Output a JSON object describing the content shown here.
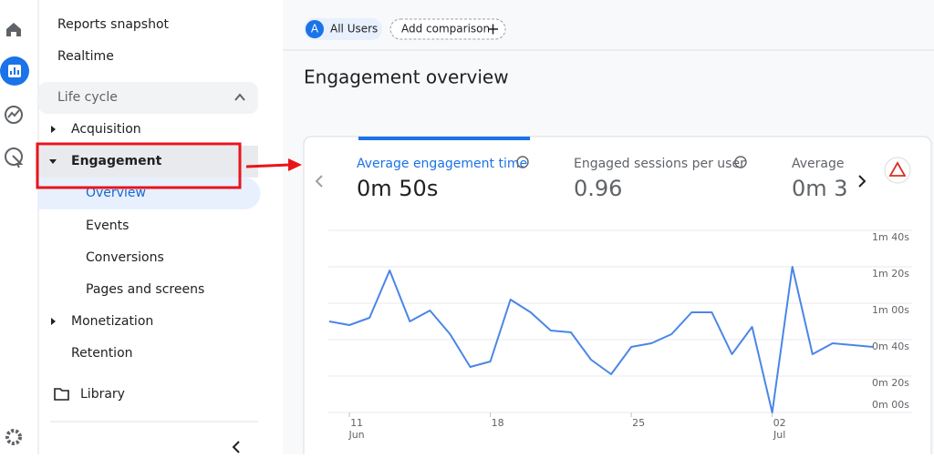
{
  "sidebar": {
    "reports_snapshot": "Reports snapshot",
    "realtime": "Realtime",
    "section": "Life cycle",
    "items": [
      "Acquisition",
      "Engagement",
      "Overview",
      "Events",
      "Conversions",
      "Pages and screens",
      "Monetization",
      "Retention"
    ],
    "library": "Library"
  },
  "header": {
    "segment_badge": "A",
    "segment": "All Users",
    "add_comparison": "Add comparison",
    "title": "Engagement overview"
  },
  "metrics": [
    {
      "label": "Average engagement time",
      "value": "0m 50s"
    },
    {
      "label": "Engaged sessions per user",
      "value": "0.96"
    },
    {
      "label": "Average e",
      "value": "0m 3"
    }
  ],
  "chart_data": {
    "type": "line",
    "categories": [
      null,
      "11",
      null,
      null,
      null,
      null,
      null,
      null,
      "18",
      null,
      null,
      null,
      null,
      null,
      null,
      "25",
      null,
      null,
      null,
      null,
      null,
      null,
      "02",
      null,
      null,
      null,
      null,
      null
    ],
    "x_sublabels": [
      null,
      "Jun",
      null,
      null,
      null,
      null,
      null,
      null,
      null,
      null,
      null,
      null,
      null,
      null,
      null,
      null,
      null,
      null,
      null,
      null,
      null,
      null,
      "Jul",
      null,
      null,
      null,
      null,
      null
    ],
    "series": [
      {
        "name": "Average engagement time",
        "color": "#4a86e8",
        "values": [
          50,
          48,
          52,
          78,
          50,
          56,
          43,
          25,
          28,
          62,
          55,
          45,
          44,
          29,
          21,
          36,
          38,
          43,
          55,
          55,
          32,
          47,
          0,
          80,
          32,
          38,
          37,
          36
        ]
      }
    ],
    "ylim": [
      0,
      100
    ],
    "yticks": [
      {
        "value": 0,
        "label": "0m 00s"
      },
      {
        "value": 20,
        "label": "0m 20s"
      },
      {
        "value": 40,
        "label": "0m 40s"
      },
      {
        "value": 60,
        "label": "1m 00s"
      },
      {
        "value": 80,
        "label": "1m 20s"
      },
      {
        "value": 100,
        "label": "1m 40s"
      }
    ],
    "grid": true
  }
}
